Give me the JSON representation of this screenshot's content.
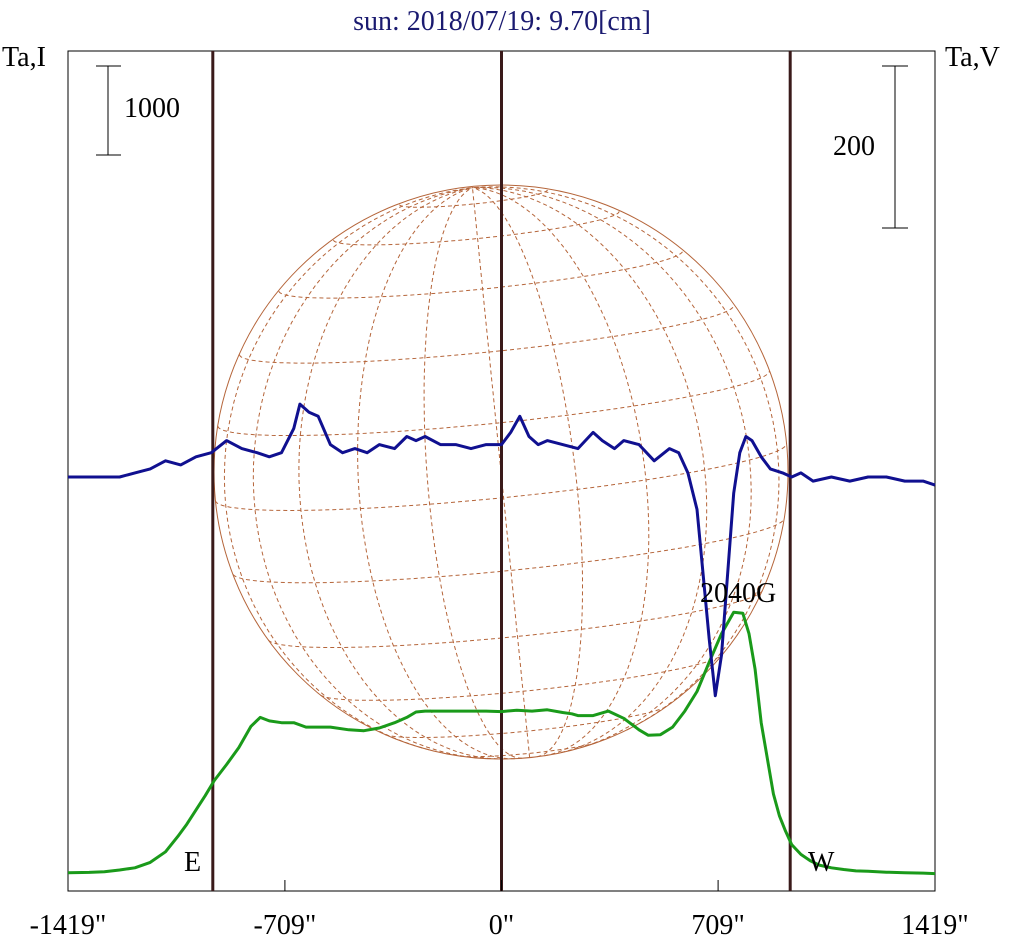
{
  "chart_data": {
    "type": "line",
    "title": "sun: 2018/07/19: 9.70[cm]",
    "ylabel_left": "Ta,I",
    "ylabel_right": "Ta,V",
    "x_axis": {
      "min": -1419,
      "max": 1419,
      "ticks": [
        -1419,
        -709,
        0,
        709,
        1419
      ],
      "tick_labels": [
        "-1419\"",
        "-709\"",
        "0\"",
        "709\"",
        "1419\""
      ]
    },
    "scale_bars": {
      "left_label": "1000",
      "right_label": "200"
    },
    "limb_labels": {
      "east": "E",
      "west": "W"
    },
    "limb_x": [
      -945,
      945
    ],
    "center_x": 0,
    "annotation": {
      "text": "2040G",
      "x": 790
    },
    "series": [
      {
        "name": "I",
        "color": "#1a9a1a",
        "x": [
          -1419,
          -1350,
          -1300,
          -1250,
          -1200,
          -1150,
          -1100,
          -1060,
          -1030,
          -1000,
          -970,
          -940,
          -900,
          -860,
          -820,
          -790,
          -760,
          -720,
          -680,
          -640,
          -600,
          -560,
          -500,
          -450,
          -400,
          -350,
          -310,
          -280,
          -250,
          -200,
          -150,
          -100,
          -50,
          0,
          50,
          100,
          150,
          200,
          230,
          250,
          300,
          350,
          400,
          450,
          480,
          520,
          560,
          600,
          640,
          680,
          720,
          760,
          790,
          810,
          830,
          850,
          870,
          890,
          910,
          930,
          950,
          980,
          1010,
          1040,
          1080,
          1120,
          1160,
          1200,
          1260,
          1320,
          1380,
          1419
        ],
        "y": [
          15,
          18,
          25,
          45,
          70,
          130,
          250,
          420,
          560,
          720,
          880,
          1050,
          1230,
          1420,
          1660,
          1760,
          1720,
          1700,
          1700,
          1650,
          1650,
          1650,
          1620,
          1610,
          1640,
          1700,
          1760,
          1820,
          1830,
          1830,
          1830,
          1830,
          1830,
          1825,
          1840,
          1830,
          1845,
          1815,
          1800,
          1780,
          1780,
          1830,
          1750,
          1620,
          1560,
          1565,
          1650,
          1830,
          2050,
          2380,
          2700,
          2940,
          2930,
          2700,
          2300,
          1700,
          1300,
          900,
          650,
          480,
          330,
          220,
          150,
          100,
          70,
          50,
          35,
          30,
          20,
          15,
          10,
          5
        ]
      },
      {
        "name": "V",
        "color": "#101090",
        "x": [
          -1419,
          -1350,
          -1300,
          -1250,
          -1200,
          -1150,
          -1100,
          -1050,
          -1000,
          -950,
          -900,
          -850,
          -800,
          -760,
          -720,
          -680,
          -660,
          -630,
          -600,
          -560,
          -520,
          -480,
          -440,
          -400,
          -350,
          -310,
          -280,
          -250,
          -200,
          -150,
          -100,
          -50,
          0,
          30,
          60,
          90,
          120,
          150,
          200,
          250,
          300,
          330,
          370,
          400,
          450,
          500,
          550,
          580,
          610,
          640,
          680,
          700,
          720,
          740,
          760,
          780,
          800,
          820,
          850,
          880,
          920,
          950,
          980,
          1020,
          1080,
          1140,
          1200,
          1260,
          1320,
          1380,
          1419
        ],
        "y": [
          0,
          0,
          0,
          0,
          5,
          10,
          20,
          15,
          25,
          30,
          45,
          35,
          30,
          25,
          30,
          60,
          90,
          80,
          75,
          40,
          30,
          35,
          30,
          40,
          35,
          50,
          45,
          50,
          40,
          40,
          35,
          40,
          40,
          55,
          75,
          50,
          40,
          45,
          40,
          35,
          55,
          45,
          35,
          45,
          40,
          20,
          35,
          30,
          5,
          -40,
          -200,
          -270,
          -220,
          -120,
          -20,
          30,
          50,
          45,
          25,
          10,
          5,
          0,
          5,
          -5,
          0,
          -5,
          0,
          0,
          -5,
          -5,
          -10
        ]
      }
    ]
  }
}
